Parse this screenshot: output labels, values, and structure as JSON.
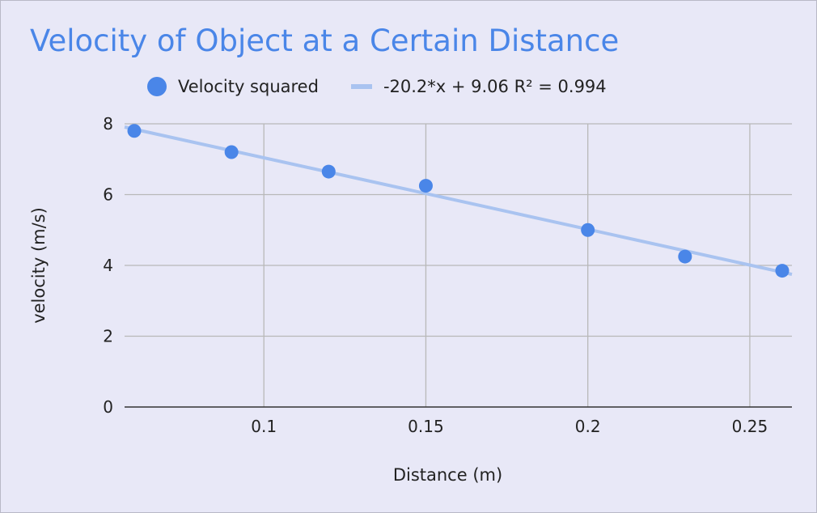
{
  "chart_data": {
    "type": "scatter",
    "title": "Velocity of Object at a Certain Distance",
    "xlabel": "Distance (m)",
    "ylabel": "velocity (m/s)",
    "xlim": [
      0.057,
      0.263
    ],
    "ylim": [
      0,
      8
    ],
    "x_ticks": [
      0.1,
      0.15,
      0.2,
      0.25
    ],
    "x_tick_labels": [
      "0.1",
      "0.15",
      "0.2",
      "0.25"
    ],
    "y_ticks": [
      0,
      2,
      4,
      6,
      8
    ],
    "y_tick_labels": [
      "0",
      "2",
      "4",
      "6",
      "8"
    ],
    "grid": true,
    "legend_position": "top",
    "series": [
      {
        "name": "Velocity squared",
        "kind": "points",
        "color": "#4a86e8",
        "x": [
          0.06,
          0.09,
          0.12,
          0.15,
          0.2,
          0.23,
          0.26
        ],
        "y": [
          7.8,
          7.2,
          6.65,
          6.25,
          5.0,
          4.25,
          3.85
        ]
      },
      {
        "name": "-20.2*x + 9.06 R² = 0.994",
        "kind": "trendline",
        "color": "#a9c3f0",
        "slope": -20.2,
        "intercept": 9.06,
        "r_squared": 0.994
      }
    ]
  }
}
